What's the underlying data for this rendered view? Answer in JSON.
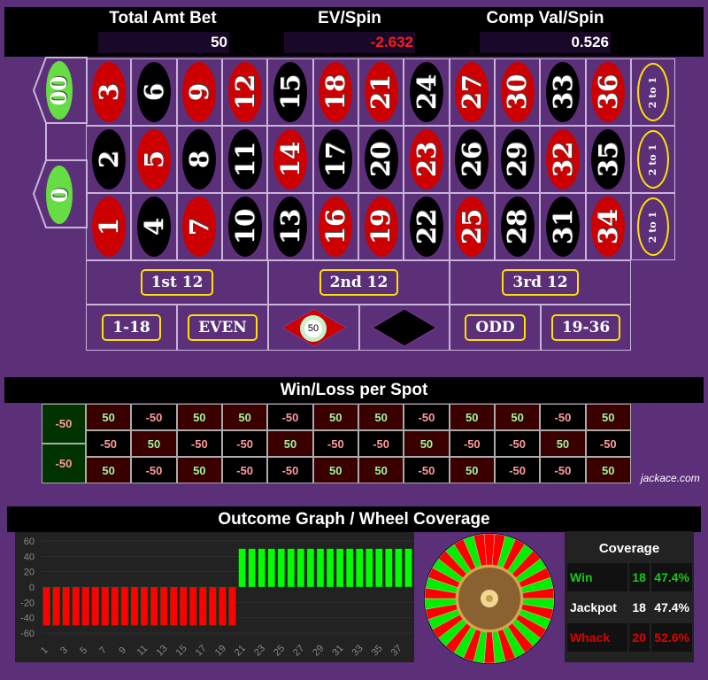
{
  "header": {
    "total_label": "Total Amt Bet",
    "total_value": "50",
    "ev_label": "EV/Spin",
    "ev_value": "-2.632",
    "ev_color": "#ff1a1a",
    "comp_label": "Comp Val/Spin",
    "comp_value": "0.526"
  },
  "board": {
    "zeros": [
      "00",
      "0"
    ],
    "rows": [
      [
        [
          "3",
          "red"
        ],
        [
          "6",
          "black"
        ],
        [
          "9",
          "red"
        ],
        [
          "12",
          "red"
        ],
        [
          "15",
          "black"
        ],
        [
          "18",
          "red"
        ],
        [
          "21",
          "red"
        ],
        [
          "24",
          "black"
        ],
        [
          "27",
          "red"
        ],
        [
          "30",
          "red"
        ],
        [
          "33",
          "black"
        ],
        [
          "36",
          "red"
        ]
      ],
      [
        [
          "2",
          "black"
        ],
        [
          "5",
          "red"
        ],
        [
          "8",
          "black"
        ],
        [
          "11",
          "black"
        ],
        [
          "14",
          "red"
        ],
        [
          "17",
          "black"
        ],
        [
          "20",
          "black"
        ],
        [
          "23",
          "red"
        ],
        [
          "26",
          "black"
        ],
        [
          "29",
          "black"
        ],
        [
          "32",
          "red"
        ],
        [
          "35",
          "black"
        ]
      ],
      [
        [
          "1",
          "red"
        ],
        [
          "4",
          "black"
        ],
        [
          "7",
          "red"
        ],
        [
          "10",
          "black"
        ],
        [
          "13",
          "black"
        ],
        [
          "16",
          "red"
        ],
        [
          "19",
          "red"
        ],
        [
          "22",
          "black"
        ],
        [
          "25",
          "red"
        ],
        [
          "28",
          "black"
        ],
        [
          "31",
          "black"
        ],
        [
          "34",
          "red"
        ]
      ]
    ],
    "column_label": "2 to 1",
    "dozens": [
      "1st 12",
      "2nd 12",
      "3rd 12"
    ],
    "outside": {
      "low": "1-18",
      "even": "EVEN",
      "odd": "ODD",
      "high": "19-36"
    },
    "red_chip": "50"
  },
  "winloss": {
    "title": "Win/Loss per Spot",
    "zeros": [
      "-50",
      "-50"
    ],
    "rows": [
      [
        "50",
        "-50",
        "50",
        "50",
        "-50",
        "50",
        "50",
        "-50",
        "50",
        "50",
        "-50",
        "50"
      ],
      [
        "-50",
        "50",
        "-50",
        "-50",
        "50",
        "-50",
        "-50",
        "50",
        "-50",
        "-50",
        "50",
        "-50"
      ],
      [
        "50",
        "-50",
        "50",
        "-50",
        "-50",
        "50",
        "50",
        "-50",
        "50",
        "-50",
        "-50",
        "50"
      ]
    ],
    "watermark": "jackace.com"
  },
  "outcome": {
    "title": "Outcome Graph / Wheel Coverage"
  },
  "chart_data": {
    "type": "bar",
    "categories": [
      "1",
      "2",
      "3",
      "4",
      "5",
      "6",
      "7",
      "8",
      "9",
      "10",
      "11",
      "12",
      "13",
      "14",
      "15",
      "16",
      "17",
      "18",
      "19",
      "20",
      "21",
      "22",
      "23",
      "24",
      "25",
      "26",
      "27",
      "28",
      "29",
      "30",
      "31",
      "32",
      "33",
      "34",
      "35",
      "36",
      "37",
      "38"
    ],
    "values": [
      -50,
      -50,
      -50,
      -50,
      -50,
      -50,
      -50,
      -50,
      -50,
      -50,
      -50,
      -50,
      -50,
      -50,
      -50,
      -50,
      -50,
      -50,
      -50,
      -50,
      50,
      50,
      50,
      50,
      50,
      50,
      50,
      50,
      50,
      50,
      50,
      50,
      50,
      50,
      50,
      50,
      50,
      50
    ],
    "yticks": [
      "60",
      "40",
      "20",
      "0",
      "-20",
      "-40",
      "-60"
    ],
    "ylim": [
      -60,
      60
    ],
    "grid": true,
    "colors": {
      "negative": "#ff0000",
      "positive": "#00ff00"
    }
  },
  "coverage": {
    "title": "Coverage",
    "rows": [
      {
        "label": "Win",
        "count": "18",
        "pct": "47.4%",
        "color": "#19c819"
      },
      {
        "label": "Jackpot",
        "count": "18",
        "pct": "47.4%",
        "color": "#ffffff"
      },
      {
        "label": "Whack",
        "count": "20",
        "pct": "52.6%",
        "color": "#e00000"
      }
    ]
  }
}
